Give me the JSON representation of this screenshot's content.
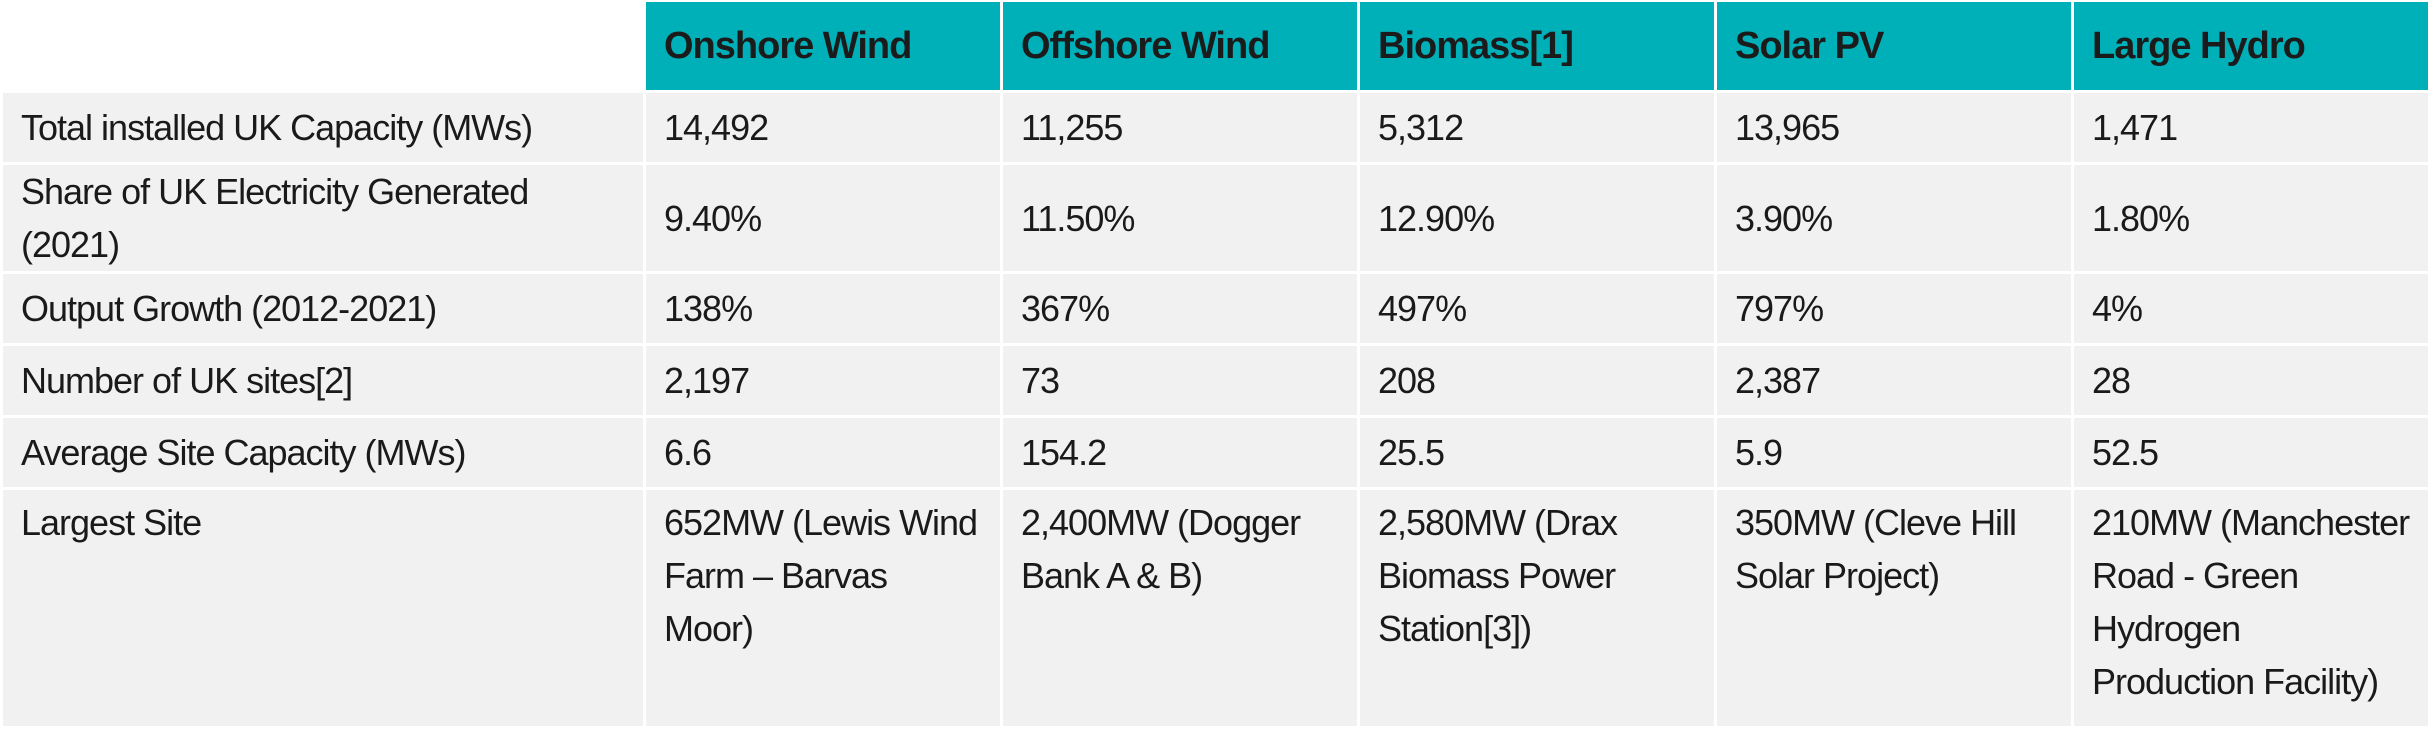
{
  "table": {
    "columns": [
      "",
      "Onshore Wind",
      "Offshore Wind",
      "Biomass[1]",
      "Solar PV",
      "Large Hydro"
    ],
    "rows": [
      {
        "label": "Total installed UK Capacity (MWs)",
        "cells": [
          "14,492",
          "11,255",
          "5,312",
          "13,965",
          "1,471"
        ]
      },
      {
        "label": "Share of UK Electricity Generated (2021)",
        "cells": [
          "9.40%",
          "11.50%",
          "12.90%",
          "3.90%",
          "1.80%"
        ]
      },
      {
        "label": "Output Growth (2012-2021)",
        "cells": [
          "138%",
          "367%",
          "497%",
          "797%",
          "4%"
        ]
      },
      {
        "label": "Number of UK sites[2]",
        "cells": [
          "2,197",
          "73",
          "208",
          "2,387",
          "28"
        ]
      },
      {
        "label": "Average Site Capacity (MWs)",
        "cells": [
          "6.6",
          "154.2",
          "25.5",
          "5.9",
          "52.5"
        ]
      },
      {
        "label": "Largest Site",
        "cells": [
          "652MW (Lewis Wind Farm – Barvas Moor)",
          "2,400MW (Dogger Bank A & B)",
          "2,580MW (Drax Biomass Power Station[3])",
          "350MW (Cleve Hill Solar Project)",
          "210MW (Manchester Road - Green Hydrogen Production Facility)"
        ]
      }
    ]
  },
  "colors": {
    "header_bg": "#00b0b9",
    "cell_bg": "#f1f1f1",
    "border": "#ffffff"
  }
}
